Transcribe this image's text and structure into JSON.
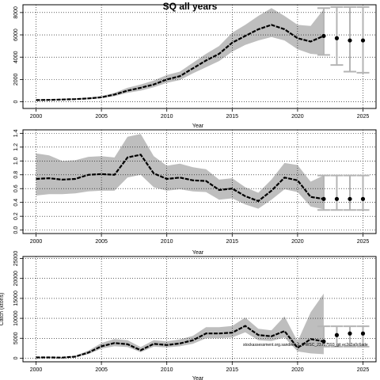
{
  "title": "SQ all years",
  "watermark": "stockassessment.org.sandeel_1_5-WSC_23.r17593_git ec2c2a0c6ade",
  "colors": {
    "band": "#bebebe",
    "line": "#000000",
    "forecast": "#000000",
    "errbar": "#b4b4b4"
  },
  "chart_data": [
    {
      "type": "line",
      "panel": "top",
      "xlabel": "Year",
      "ylabel": "",
      "xlim": [
        1999,
        2026
      ],
      "ylim": [
        -600,
        8700
      ],
      "x_ticks": [
        2000,
        2005,
        2010,
        2015,
        2020,
        2025
      ],
      "y_ticks": [
        0,
        2000,
        4000,
        6000,
        8000
      ],
      "y_tick_labels": [
        "0",
        "2000",
        "4000",
        "6000",
        "8000"
      ],
      "grid": true,
      "series": [
        {
          "x": [
            2000,
            2001,
            2002,
            2003,
            2004,
            2005,
            2006,
            2007,
            2008,
            2009,
            2010,
            2011,
            2012,
            2013,
            2014,
            2015,
            2016,
            2017,
            2018,
            2019,
            2020,
            2021,
            2022
          ],
          "values": [
            150,
            170,
            200,
            240,
            300,
            400,
            650,
            1000,
            1250,
            1550,
            2000,
            2300,
            3000,
            3700,
            4300,
            5300,
            5900,
            6500,
            6900,
            6500,
            5700,
            5400,
            5900
          ],
          "lower": [
            120,
            140,
            160,
            190,
            240,
            320,
            500,
            800,
            1000,
            1300,
            1700,
            1950,
            2550,
            3100,
            3650,
            4500,
            5100,
            5500,
            5800,
            5500,
            4700,
            4300,
            4200
          ],
          "upper": [
            190,
            210,
            250,
            290,
            370,
            500,
            800,
            1250,
            1550,
            1900,
            2400,
            2700,
            3500,
            4300,
            5000,
            6200,
            6900,
            7700,
            8400,
            7700,
            6900,
            6800,
            8300
          ]
        }
      ],
      "forecast": {
        "x": [
          2023,
          2024,
          2025
        ],
        "values": [
          5700,
          5500,
          5500
        ],
        "lower": [
          3300,
          2700,
          2600
        ],
        "upper": [
          8500,
          8500,
          8500
        ]
      },
      "forecast_anchor": {
        "x": 2022,
        "value": 5900,
        "lower": 4200,
        "upper": 8400
      }
    },
    {
      "type": "line",
      "panel": "middle",
      "xlabel": "Year",
      "ylabel": "",
      "xlim": [
        1999,
        2026
      ],
      "ylim": [
        -0.05,
        1.45
      ],
      "x_ticks": [
        2000,
        2005,
        2010,
        2015,
        2020,
        2025
      ],
      "y_ticks": [
        0.0,
        0.2,
        0.4,
        0.6,
        0.8,
        1.0,
        1.2,
        1.4
      ],
      "y_tick_labels": [
        "0.0",
        "0.2",
        "0.4",
        "0.6",
        "0.8",
        "1.0",
        "1.2",
        "1.4"
      ],
      "grid": true,
      "series": [
        {
          "x": [
            2000,
            2001,
            2002,
            2003,
            2004,
            2005,
            2006,
            2007,
            2008,
            2009,
            2010,
            2011,
            2012,
            2013,
            2014,
            2015,
            2016,
            2017,
            2018,
            2019,
            2020,
            2021,
            2022
          ],
          "values": [
            0.74,
            0.75,
            0.73,
            0.74,
            0.8,
            0.81,
            0.8,
            1.05,
            1.09,
            0.82,
            0.74,
            0.76,
            0.72,
            0.71,
            0.58,
            0.6,
            0.49,
            0.42,
            0.57,
            0.76,
            0.72,
            0.48,
            0.45
          ],
          "lower": [
            0.5,
            0.52,
            0.52,
            0.53,
            0.56,
            0.57,
            0.57,
            0.76,
            0.8,
            0.62,
            0.57,
            0.59,
            0.56,
            0.55,
            0.44,
            0.46,
            0.37,
            0.31,
            0.44,
            0.59,
            0.55,
            0.34,
            0.3
          ],
          "upper": [
            1.11,
            1.08,
            1.0,
            1.01,
            1.06,
            1.07,
            1.05,
            1.35,
            1.39,
            1.07,
            0.93,
            0.96,
            0.91,
            0.88,
            0.73,
            0.75,
            0.62,
            0.54,
            0.73,
            0.97,
            0.94,
            0.7,
            0.79
          ]
        }
      ],
      "forecast": {
        "x": [
          2023,
          2024,
          2025
        ],
        "values": [
          0.45,
          0.45,
          0.45
        ],
        "lower": [
          0.29,
          0.29,
          0.29
        ],
        "upper": [
          0.79,
          0.79,
          0.79
        ]
      },
      "forecast_anchor": {
        "x": 2022,
        "value": 0.45,
        "lower": 0.29,
        "upper": 0.79
      }
    },
    {
      "type": "line",
      "panel": "bottom",
      "xlabel": "Year",
      "ylabel": "Catch (ktons)",
      "xlim": [
        1999,
        2026
      ],
      "ylim": [
        -900,
        25500
      ],
      "x_ticks": [
        2000,
        2005,
        2010,
        2015,
        2020,
        2025
      ],
      "y_ticks": [
        0,
        5000,
        10000,
        15000,
        20000,
        25000
      ],
      "y_tick_labels": [
        "0",
        "5000",
        "10000",
        "15000",
        "20000",
        "25000"
      ],
      "grid": true,
      "series": [
        {
          "x": [
            2000,
            2001,
            2002,
            2003,
            2004,
            2005,
            2006,
            2007,
            2008,
            2009,
            2010,
            2011,
            2012,
            2013,
            2014,
            2015,
            2016,
            2017,
            2018,
            2019,
            2020,
            2021,
            2022
          ],
          "values": [
            200,
            200,
            150,
            400,
            1400,
            3000,
            3800,
            3500,
            2000,
            3600,
            3300,
            3700,
            4500,
            6200,
            6200,
            6400,
            8100,
            5800,
            5500,
            6800,
            2600,
            4800,
            4200
          ],
          "lower": [
            150,
            150,
            100,
            300,
            1000,
            2400,
            3000,
            2800,
            1500,
            2900,
            2700,
            3000,
            3600,
            5000,
            5000,
            5200,
            6500,
            4500,
            4300,
            5200,
            1700,
            1200,
            1000
          ],
          "upper": [
            300,
            300,
            250,
            600,
            1900,
            3800,
            4800,
            4500,
            2800,
            4500,
            4200,
            4700,
            5600,
            7800,
            7800,
            8100,
            10200,
            7400,
            7000,
            10500,
            4200,
            11500,
            16200
          ]
        }
      ],
      "forecast": {
        "x": [
          2023,
          2024,
          2025
        ],
        "values": [
          5800,
          6200,
          6200
        ],
        "lower": [
          2900,
          2900,
          2900
        ],
        "upper": [
          8000,
          8000,
          8000
        ]
      },
      "forecast_anchor": {
        "x": 2022,
        "value": 4200,
        "lower": 2900,
        "upper": 8000
      }
    }
  ]
}
